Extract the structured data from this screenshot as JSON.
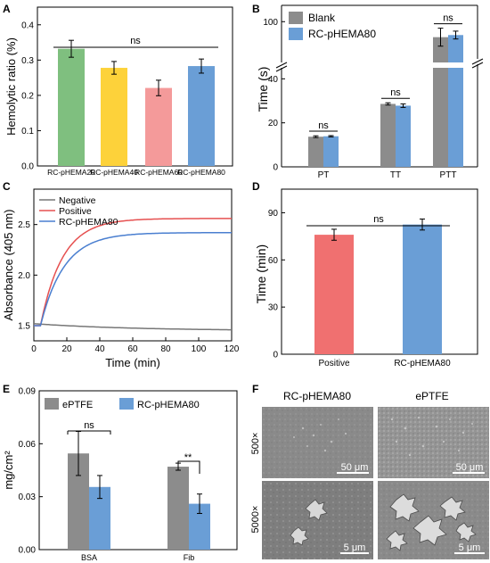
{
  "panels": {
    "A": {
      "letter": "A",
      "ylabel": "Hemolytic ratio (%)",
      "yticks": [
        "0.0",
        "0.1",
        "0.2",
        "0.3",
        "0.4"
      ],
      "bracket_label": "ns"
    },
    "B": {
      "letter": "B",
      "ylabel": "Time (s)",
      "yticks_low": [
        "0",
        "20",
        "40"
      ],
      "yticks_high": [
        "100"
      ],
      "ns_labels": [
        "ns",
        "ns",
        "ns"
      ]
    },
    "C": {
      "letter": "C",
      "ylabel": "Absorbance (405 nm)",
      "xlabel": "Time (min)",
      "yticks": [
        "1.5",
        "2.0",
        "2.5"
      ],
      "xticks": [
        "0",
        "20",
        "40",
        "60",
        "80",
        "100",
        "120"
      ]
    },
    "D": {
      "letter": "D",
      "ylabel": "Time (min)",
      "yticks": [
        "0",
        "30",
        "60",
        "90"
      ],
      "bracket_label": "ns"
    },
    "E": {
      "letter": "E",
      "ylabel": "mg/cm²",
      "yticks": [
        "0.00",
        "0.03",
        "0.06",
        "0.09"
      ],
      "ns_label": "ns",
      "sig_label": "**"
    },
    "F": {
      "letter": "F",
      "col_headers": [
        "RC-pHEMA80",
        "ePTFE"
      ],
      "row_labels": [
        "500×",
        "5000×"
      ],
      "scale_bars": [
        "50 μm",
        "50 μm",
        "5 μm",
        "5 μm"
      ]
    }
  },
  "colors": {
    "green": "#7fbf7f",
    "yellow": "#fdd23a",
    "pink": "#f49a9a",
    "blue": "#6a9ed6",
    "gray": "#8c8c8c",
    "red": "#f07070",
    "line_gray": "#777777",
    "line_red": "#e65050",
    "line_blue": "#4a7fd0"
  },
  "chart_data": [
    {
      "panel": "A",
      "type": "bar",
      "categories": [
        "RC-pHEMA20",
        "RC-pHEMA40",
        "RC-pHEMA60",
        "RC-pHEMA80"
      ],
      "values": [
        0.332,
        0.278,
        0.221,
        0.283
      ],
      "errors": [
        0.024,
        0.018,
        0.022,
        0.02
      ],
      "colors": [
        "green",
        "yellow",
        "pink",
        "blue"
      ],
      "xlabel": "",
      "ylabel": "Hemolytic ratio (%)",
      "ylim": [
        0,
        0.45
      ]
    },
    {
      "panel": "B",
      "type": "bar",
      "categories": [
        "PT",
        "TT",
        "PTT"
      ],
      "series": [
        {
          "name": "Blank",
          "values": [
            13.7,
            28.6,
            90.5
          ],
          "errors": [
            0.4,
            0.5,
            5.5
          ]
        },
        {
          "name": "RC-pHEMA80",
          "values": [
            13.9,
            27.8,
            91.8
          ],
          "errors": [
            0.3,
            0.8,
            2.4
          ]
        }
      ],
      "ylabel": "Time (s)",
      "axis_break": [
        45,
        75
      ],
      "ylim": [
        0,
        110
      ]
    },
    {
      "panel": "C",
      "type": "line",
      "xlabel": "Time (min)",
      "ylabel": "Absorbance (405 nm)",
      "xlim": [
        0,
        120
      ],
      "ylim": [
        1.35,
        2.85
      ],
      "series": [
        {
          "name": "Negative",
          "color": "line_gray",
          "start": 1.52,
          "plateau": 1.45,
          "kind": "decay"
        },
        {
          "name": "Positive",
          "color": "line_red",
          "start": 1.5,
          "plateau": 2.56,
          "kind": "rise",
          "rate": 0.075
        },
        {
          "name": "RC-pHEMA80",
          "color": "line_blue",
          "start": 1.5,
          "plateau": 2.42,
          "kind": "rise",
          "rate": 0.07
        }
      ]
    },
    {
      "panel": "D",
      "type": "bar",
      "categories": [
        "Positive",
        "RC-pHEMA80"
      ],
      "values": [
        76,
        82.5
      ],
      "errors": [
        3.5,
        3.5
      ],
      "colors": [
        "red",
        "blue"
      ],
      "ylabel": "Time (min)",
      "ylim": [
        0,
        105
      ]
    },
    {
      "panel": "E",
      "type": "bar",
      "categories": [
        "BSA",
        "Fib"
      ],
      "series": [
        {
          "name": "ePTFE",
          "values": [
            0.0545,
            0.047
          ],
          "errors": [
            0.0125,
            0.002
          ]
        },
        {
          "name": "RC-pHEMA80",
          "values": [
            0.0355,
            0.026
          ],
          "errors": [
            0.0065,
            0.0055
          ]
        }
      ],
      "ylabel": "mg/cm²",
      "ylim": [
        0,
        0.09
      ]
    }
  ]
}
